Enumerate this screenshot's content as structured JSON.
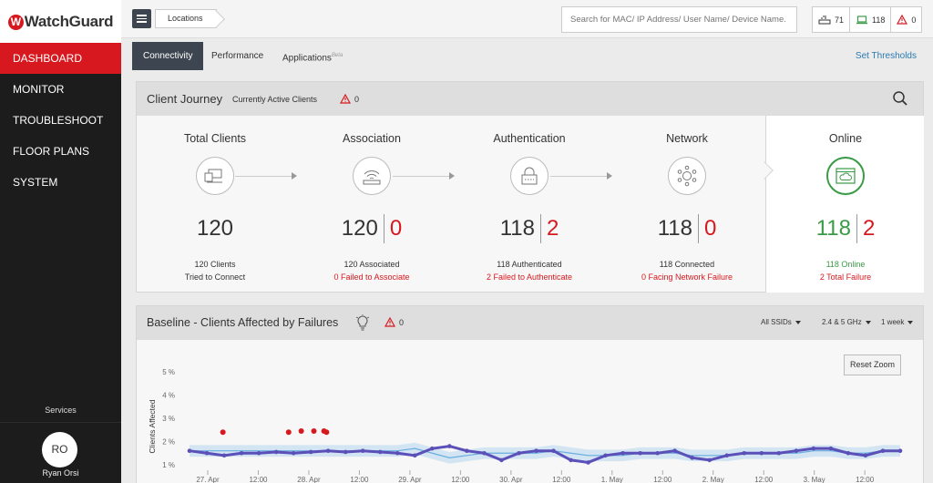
{
  "brand": {
    "logo_text": "WatchGuard"
  },
  "sidebar": {
    "items": [
      {
        "label": "DASHBOARD",
        "active": true
      },
      {
        "label": "MONITOR",
        "active": false
      },
      {
        "label": "TROUBLESHOOT",
        "active": false
      },
      {
        "label": "FLOOR PLANS",
        "active": false
      },
      {
        "label": "SYSTEM",
        "active": false
      }
    ],
    "services_label": "Services",
    "user": {
      "initials": "RO",
      "name": "Ryan Orsi"
    }
  },
  "topbar": {
    "breadcrumb": "Locations",
    "search_placeholder": "Search for MAC/ IP Address/ User Name/ Device Name.",
    "stats": {
      "devices": "71",
      "clients": "118",
      "alerts": "0"
    }
  },
  "tabs": [
    {
      "label": "Connectivity",
      "active": true
    },
    {
      "label": "Performance",
      "active": false
    },
    {
      "label": "Applications",
      "badge": "Beta",
      "active": false
    }
  ],
  "set_thresholds": "Set Thresholds",
  "client_journey": {
    "title": "Client Journey",
    "subtitle": "Currently Active Clients",
    "alert_count": "0",
    "stages": [
      {
        "title": "Total Clients",
        "count": "120",
        "line1": "120 Clients",
        "line2": "Tried to Connect"
      },
      {
        "title": "Association",
        "count": "120",
        "fail": "0",
        "line1": "120 Associated",
        "line2": "0 Failed to Associate"
      },
      {
        "title": "Authentication",
        "count": "118",
        "fail": "2",
        "line1": "118 Authenticated",
        "line2": "2 Failed to Authenticate"
      },
      {
        "title": "Network",
        "count": "118",
        "fail": "0",
        "line1": "118 Connected",
        "line2": "0 Facing Network Failure"
      }
    ],
    "online": {
      "title": "Online",
      "count": "118",
      "fail": "2",
      "line1": "118 Online",
      "line2": "2 Total Failure"
    }
  },
  "baseline": {
    "title": "Baseline - Clients Affected by Failures",
    "alert_count": "0",
    "filters": {
      "ssid": "All SSIDs",
      "band": "2.4 & 5 GHz",
      "period": "1 week"
    },
    "reset_zoom": "Reset Zoom"
  },
  "colors": {
    "accent_red": "#d7191f",
    "success_green": "#3a9b46",
    "series_purple": "#5b4fb8",
    "baseline_blue": "#8fc3e8"
  },
  "chart_data": {
    "type": "line",
    "ylabel": "Clients Affected",
    "yticks": [
      "5 %",
      "4 %",
      "3 %",
      "2 %",
      "1 %"
    ],
    "ylim": [
      1,
      5
    ],
    "xticks": [
      "27. Apr",
      "12:00",
      "28. Apr",
      "12:00",
      "29. Apr",
      "12:00",
      "30. Apr",
      "12:00",
      "1. May",
      "12:00",
      "2. May",
      "12:00",
      "3. May",
      "12:00"
    ],
    "series": [
      {
        "values": [
          1.6,
          1.5,
          1.4,
          1.5,
          1.5,
          1.55,
          1.5,
          1.55,
          1.6,
          1.55,
          1.6,
          1.55,
          1.5,
          1.4,
          1.7,
          1.8,
          1.6,
          1.5,
          1.2,
          1.5,
          1.6,
          1.6,
          1.2,
          1.1,
          1.4,
          1.5,
          1.5,
          1.5,
          1.6,
          1.3,
          1.2,
          1.4,
          1.5,
          1.5,
          1.5,
          1.6,
          1.7,
          1.7,
          1.5,
          1.4,
          1.6,
          1.6
        ]
      },
      {
        "values": [
          1.6,
          1.6,
          1.6,
          1.6,
          1.6,
          1.6,
          1.6,
          1.6,
          1.6,
          1.6,
          1.6,
          1.6,
          1.6,
          1.7,
          1.5,
          1.3,
          1.4,
          1.5,
          1.5,
          1.5,
          1.5,
          1.6,
          1.5,
          1.4,
          1.4,
          1.4,
          1.5,
          1.5,
          1.5,
          1.4,
          1.4,
          1.4,
          1.5,
          1.5,
          1.5,
          1.5,
          1.6,
          1.6,
          1.5,
          1.5,
          1.6,
          1.6
        ]
      }
    ],
    "failure_points": [
      [
        0.3,
        2.4
      ],
      [
        1.6,
        2.4
      ],
      [
        1.85,
        2.45
      ],
      [
        2.1,
        2.45
      ],
      [
        2.3,
        2.45
      ],
      [
        2.35,
        2.4
      ]
    ]
  }
}
